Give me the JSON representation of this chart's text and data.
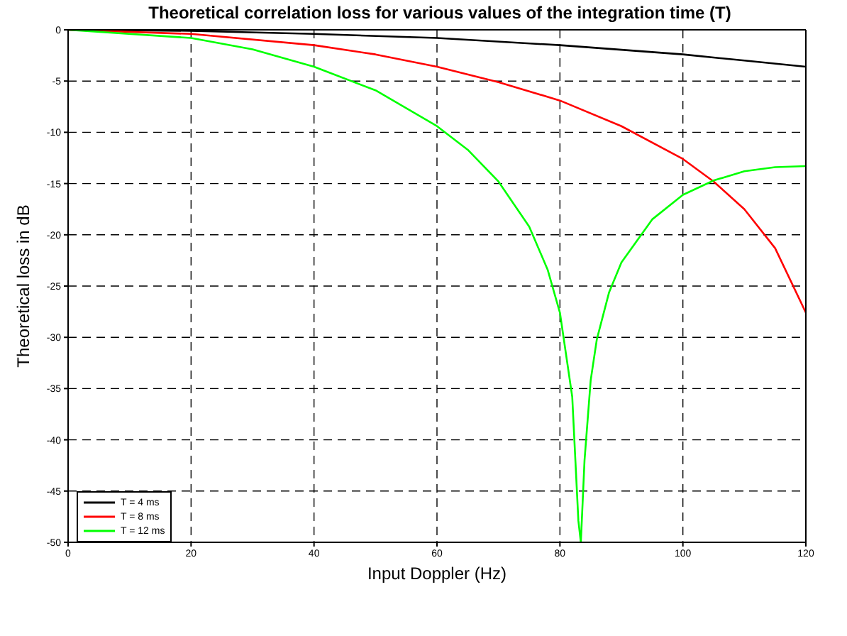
{
  "chart_data": {
    "type": "line",
    "title": "Theoretical correlation loss for various values of the integration time (T)",
    "xlabel": "Input Doppler     (Hz)",
    "ylabel": "Theoretical loss in dB",
    "xlim": [
      0,
      120
    ],
    "xticks": [
      0,
      20,
      40,
      60,
      80,
      100,
      120
    ],
    "ylim": [
      -50,
      0
    ],
    "yticks": [
      -50,
      -45,
      -40,
      -35,
      -30,
      -25,
      -20,
      -15,
      -10,
      -5,
      0
    ],
    "grid": true,
    "legend": "bottom left",
    "marker": "none",
    "line_style": "solid",
    "series": [
      {
        "name": "T = 4 ms",
        "color": "#000000",
        "x": [
          0,
          20,
          40,
          60,
          80,
          100,
          110,
          120
        ],
        "values": [
          0,
          -0.1,
          -0.4,
          -0.8,
          -1.5,
          -2.4,
          -3,
          -3.6
        ]
      },
      {
        "name": "T = 8 ms",
        "color": "#ff0000",
        "x": [
          0,
          20,
          40,
          50,
          60,
          70,
          80,
          90,
          100,
          105,
          110,
          115,
          120
        ],
        "values": [
          0,
          -0.4,
          -1.5,
          -2.4,
          -3.6,
          -5.1,
          -6.9,
          -9.4,
          -12.6,
          -14.8,
          -17.5,
          -21.3,
          -27.6
        ]
      },
      {
        "name": "T = 12 ms",
        "color": "#00ff00",
        "x": [
          0,
          20,
          30,
          40,
          50,
          60,
          65,
          70,
          75,
          78,
          80,
          82,
          83,
          83.4,
          84,
          85,
          86,
          88,
          90,
          95,
          100,
          105,
          110,
          115,
          120
        ],
        "values": [
          0,
          -0.8,
          -1.9,
          -3.6,
          -5.9,
          -9.4,
          -11.7,
          -14.8,
          -19.2,
          -23.4,
          -27.6,
          -35.8,
          -47.9,
          -50,
          -42,
          -34.2,
          -30.2,
          -25.6,
          -22.7,
          -18.5,
          -16.1,
          -14.7,
          -13.8,
          -13.4,
          -13.3
        ]
      }
    ]
  }
}
